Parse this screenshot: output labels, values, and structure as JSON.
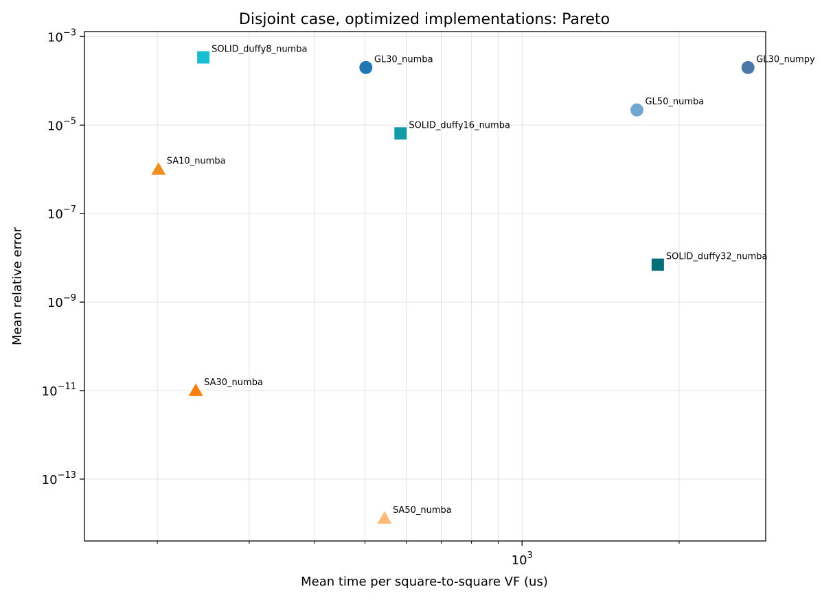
{
  "chart_data": {
    "type": "scatter",
    "title": "Disjoint case, optimized implementations: Pareto",
    "xlabel": "Mean time per square-to-square VF (us)",
    "ylabel": "Mean relative error",
    "xscale": "log",
    "yscale": "log",
    "xlim": [
      145,
      2930
    ],
    "ylim": [
      4e-15,
      0.0013
    ],
    "grid": true,
    "x_major_ticks": [
      {
        "value": 1000,
        "base": "10",
        "exp": "3"
      }
    ],
    "x_minor_ticks": [
      200,
      300,
      400,
      500,
      600,
      700,
      800,
      900,
      2000
    ],
    "y_ticks": [
      {
        "value": 0.001,
        "base": "10",
        "exp": "−3"
      },
      {
        "value": 1e-05,
        "base": "10",
        "exp": "−5"
      },
      {
        "value": 1e-07,
        "base": "10",
        "exp": "−7"
      },
      {
        "value": 1e-09,
        "base": "10",
        "exp": "−9"
      },
      {
        "value": 1e-11,
        "base": "10",
        "exp": "−11"
      },
      {
        "value": 1e-13,
        "base": "10",
        "exp": "−13"
      }
    ],
    "points": [
      {
        "label": "SOLID_duffy8_numba",
        "x": 245,
        "y": 0.00034,
        "marker": "square",
        "color": "#17becf"
      },
      {
        "label": "GL30_numba",
        "x": 502,
        "y": 0.0002,
        "marker": "circle",
        "color": "#1f77b4"
      },
      {
        "label": "GL30_numpy",
        "x": 2710,
        "y": 0.0002,
        "marker": "circle",
        "color": "#4a78a8"
      },
      {
        "label": "GL50_numba",
        "x": 1660,
        "y": 2.2e-05,
        "marker": "circle",
        "color": "#6fa7d1"
      },
      {
        "label": "SOLID_duffy16_numba",
        "x": 585,
        "y": 6.5e-06,
        "marker": "square",
        "color": "#1599a6"
      },
      {
        "label": "SA10_numba",
        "x": 201,
        "y": 1e-06,
        "marker": "triangle",
        "color": "#f28e1c"
      },
      {
        "label": "SOLID_duffy32_numba",
        "x": 1820,
        "y": 7e-09,
        "marker": "square",
        "color": "#006f78"
      },
      {
        "label": "SA30_numba",
        "x": 237,
        "y": 1e-11,
        "marker": "triangle",
        "color": "#ff7f0e"
      },
      {
        "label": "SA50_numba",
        "x": 545,
        "y": 1.3e-14,
        "marker": "triangle",
        "color": "#ffbb78"
      }
    ]
  }
}
